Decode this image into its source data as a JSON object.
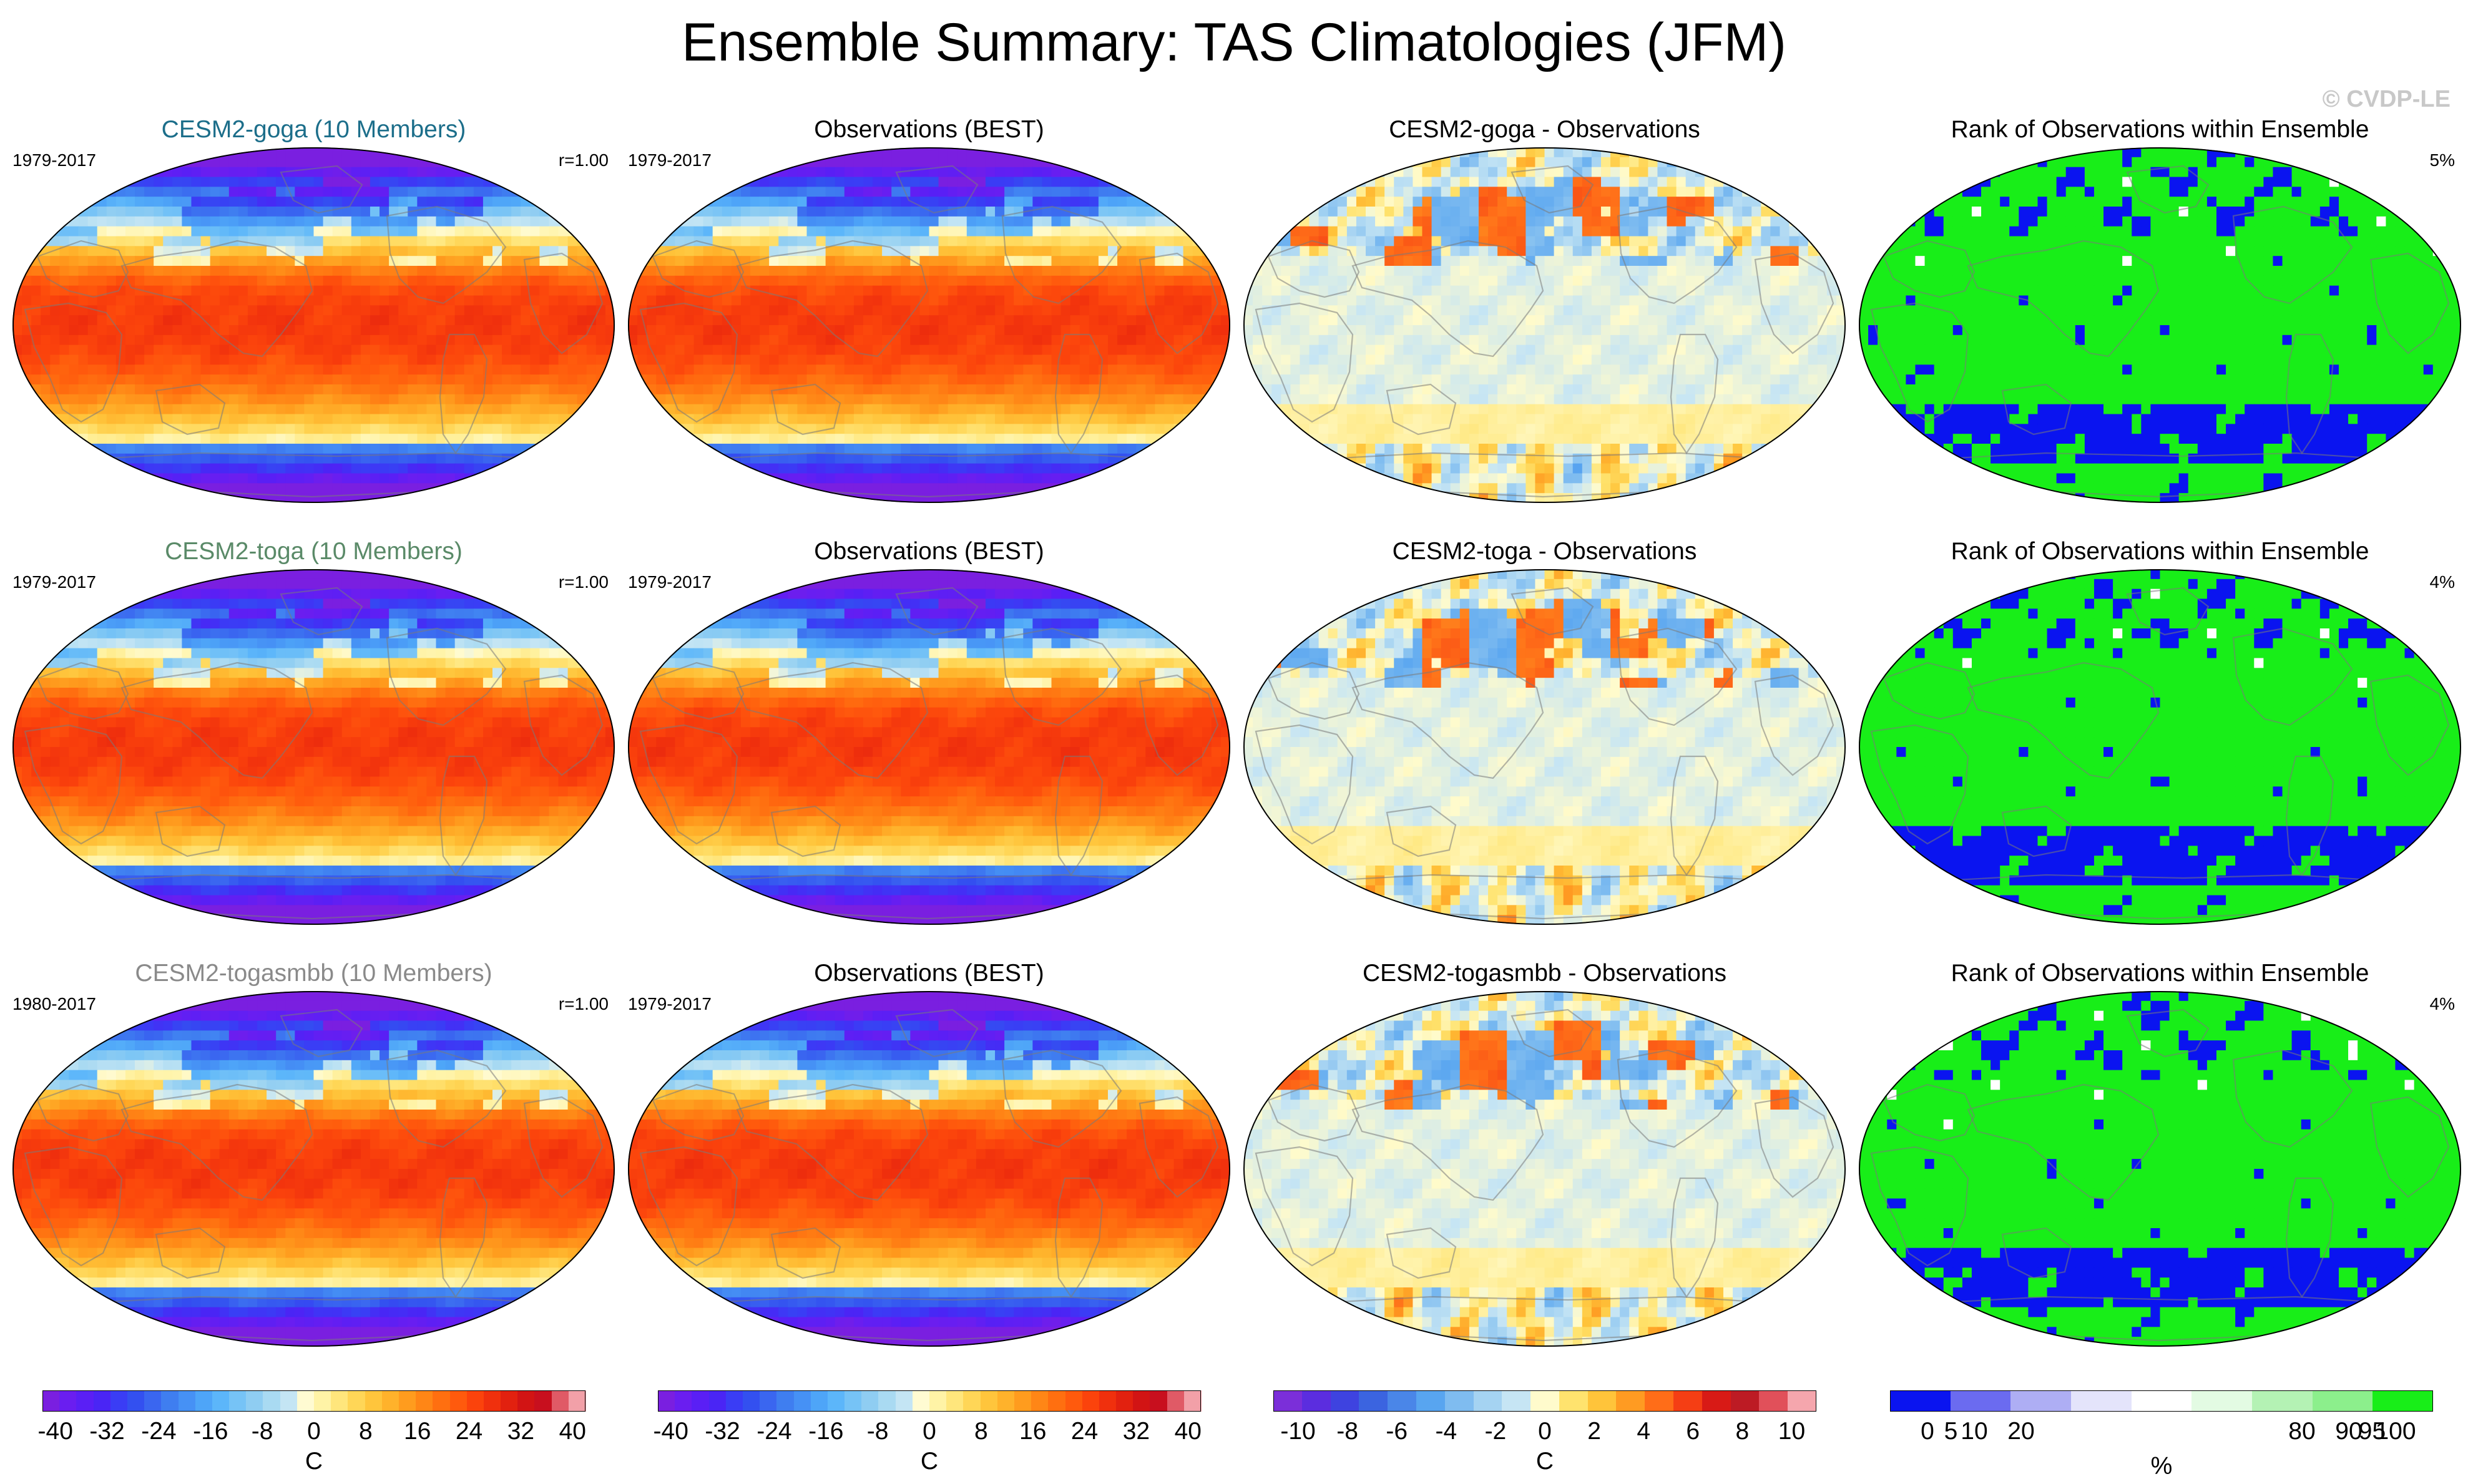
{
  "title": "Ensemble Summary: TAS Climatologies (JFM)",
  "credit": "© CVDP-LE",
  "chart_data": {
    "type": "heatmap",
    "projection": "Robinson-like oval, Pacific-centred",
    "rows": [
      {
        "panels": [
          {
            "kind": "ensemble",
            "title": "CESM2-goga (10 Members)",
            "title_color": "#1c6e8a",
            "years": "1979-2017",
            "corner": "r=1.00"
          },
          {
            "kind": "obs",
            "title": "Observations (BEST)",
            "title_color": "#000000",
            "years": "1979-2017",
            "corner": ""
          },
          {
            "kind": "diff",
            "title": "CESM2-goga - Observations",
            "title_color": "#000000",
            "years": "",
            "corner": ""
          },
          {
            "kind": "rank",
            "title": "Rank of Observations within Ensemble",
            "title_color": "#000000",
            "years": "",
            "corner": "5%"
          }
        ]
      },
      {
        "panels": [
          {
            "kind": "ensemble",
            "title": "CESM2-toga (10 Members)",
            "title_color": "#5a8a68",
            "years": "1979-2017",
            "corner": "r=1.00"
          },
          {
            "kind": "obs",
            "title": "Observations (BEST)",
            "title_color": "#000000",
            "years": "1979-2017",
            "corner": ""
          },
          {
            "kind": "diff",
            "title": "CESM2-toga - Observations",
            "title_color": "#000000",
            "years": "",
            "corner": ""
          },
          {
            "kind": "rank",
            "title": "Rank of Observations within Ensemble",
            "title_color": "#000000",
            "years": "",
            "corner": "4%"
          }
        ]
      },
      {
        "panels": [
          {
            "kind": "ensemble",
            "title": "CESM2-togasmbb (10 Members)",
            "title_color": "#8a8a8a",
            "years": "1980-2017",
            "corner": "r=1.00"
          },
          {
            "kind": "obs",
            "title": "Observations (BEST)",
            "title_color": "#000000",
            "years": "1979-2017",
            "corner": ""
          },
          {
            "kind": "diff",
            "title": "CESM2-togasmbb - Observations",
            "title_color": "#000000",
            "years": "",
            "corner": ""
          },
          {
            "kind": "rank",
            "title": "Rank of Observations within Ensemble",
            "title_color": "#000000",
            "years": "",
            "corner": "4%"
          }
        ]
      }
    ],
    "colorbars": [
      {
        "id": "tas",
        "unit": "C",
        "ticks": [
          "-40",
          "-32",
          "-24",
          "-16",
          "-8",
          "0",
          "8",
          "16",
          "24",
          "32",
          "40"
        ],
        "tick_values": [
          -40,
          -32,
          -24,
          -16,
          -8,
          0,
          8,
          16,
          24,
          32,
          40
        ],
        "range": [
          -42,
          42
        ],
        "colors": [
          "#7a1fe0",
          "#6a1ef0",
          "#5a1ff5",
          "#4a25f5",
          "#3a3df5",
          "#3350f0",
          "#3a66f0",
          "#3f7ef0",
          "#4691f5",
          "#4ea5f8",
          "#5cb6fa",
          "#76c3f6",
          "#8fcdf2",
          "#a9daf2",
          "#c4e5f4",
          "#fffbd2",
          "#fff3a6",
          "#ffe67c",
          "#ffd657",
          "#ffc53c",
          "#ffb22b",
          "#ff9c1e",
          "#ff8616",
          "#ff6f10",
          "#ff5a0d",
          "#fb430c",
          "#f0300d",
          "#e2210f",
          "#d21414",
          "#c80f1e",
          "#e05a66",
          "#f2a0a8"
        ]
      },
      {
        "id": "tas2",
        "unit": "C",
        "ticks": [
          "-40",
          "-32",
          "-24",
          "-16",
          "-8",
          "0",
          "8",
          "16",
          "24",
          "32",
          "40"
        ],
        "tick_values": [
          -40,
          -32,
          -24,
          -16,
          -8,
          0,
          8,
          16,
          24,
          32,
          40
        ],
        "range": [
          -42,
          42
        ],
        "colors": [
          "#7a1fe0",
          "#6a1ef0",
          "#5a1ff5",
          "#4a25f5",
          "#3a3df5",
          "#3350f0",
          "#3a66f0",
          "#3f7ef0",
          "#4691f5",
          "#4ea5f8",
          "#5cb6fa",
          "#76c3f6",
          "#8fcdf2",
          "#a9daf2",
          "#c4e5f4",
          "#fffbd2",
          "#fff3a6",
          "#ffe67c",
          "#ffd657",
          "#ffc53c",
          "#ffb22b",
          "#ff9c1e",
          "#ff8616",
          "#ff6f10",
          "#ff5a0d",
          "#fb430c",
          "#f0300d",
          "#e2210f",
          "#d21414",
          "#c80f1e",
          "#e05a66",
          "#f2a0a8"
        ]
      },
      {
        "id": "diff",
        "unit": "C",
        "ticks": [
          "-10",
          "-8",
          "-6",
          "-4",
          "-2",
          "0",
          "2",
          "4",
          "6",
          "8",
          "10"
        ],
        "tick_values": [
          -10,
          -8,
          -6,
          -4,
          -2,
          0,
          2,
          4,
          6,
          8,
          10
        ],
        "range": [
          -11,
          11
        ],
        "colors": [
          "#7b2fd9",
          "#5b2ddf",
          "#3e43e0",
          "#3b64e0",
          "#4a86e8",
          "#58a5f0",
          "#7fbcf0",
          "#a5d3f2",
          "#c6e5f4",
          "#fffbcc",
          "#ffe36e",
          "#ffc43a",
          "#ff9b22",
          "#ff6d18",
          "#f53e14",
          "#d81a16",
          "#bd1b24",
          "#e1505a",
          "#f5a6ad"
        ]
      },
      {
        "id": "rank",
        "unit": "%",
        "ticks": [
          "0",
          "5",
          "10",
          "20",
          "80",
          "90",
          "95",
          "100"
        ],
        "tick_values": [
          0,
          5,
          10,
          20,
          80,
          90,
          95,
          100
        ],
        "range": [
          -8,
          108
        ],
        "colors": [
          "#0a14f0",
          "#6b6bf0",
          "#aeaef4",
          "#e4e4fb",
          "#ffffff",
          "#e3fbe3",
          "#b4f2b4",
          "#8cef8c",
          "#18ee18"
        ]
      }
    ]
  }
}
